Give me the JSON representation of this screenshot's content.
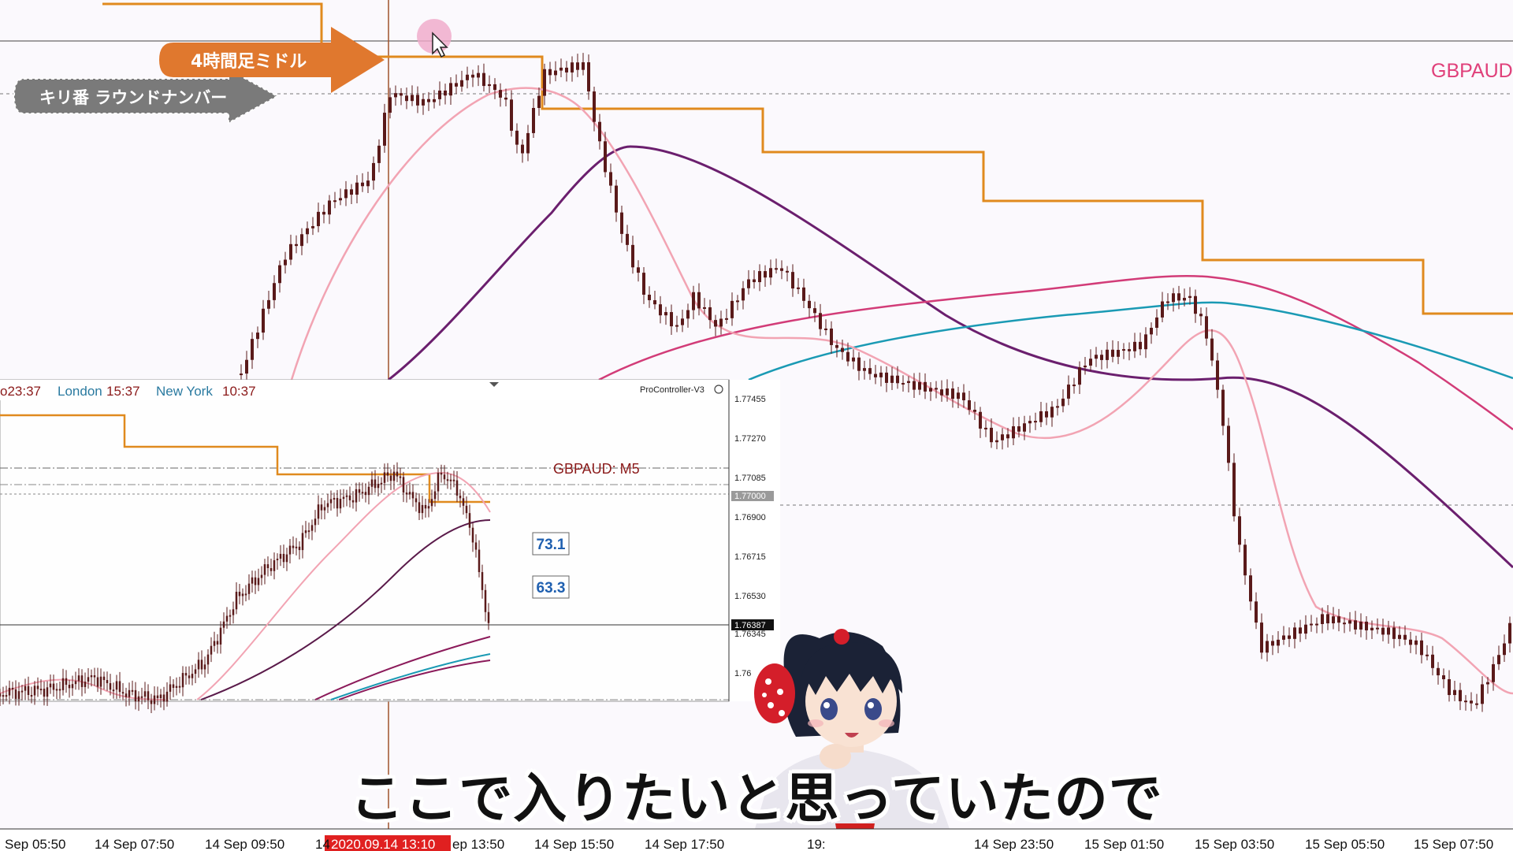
{
  "main_chart": {
    "symbol_label": "GBPAUD",
    "x_ticks": [
      "Sep 05:50",
      "14 Sep 07:50",
      "14 Sep 09:50",
      "14",
      "ep 13:50",
      "14 Sep 15:50",
      "14 Sep 17:50",
      "19:",
      "14 Sep 23:50",
      "15 Sep 01:50",
      "15 Sep 03:50",
      "15 Sep 05:50",
      "15 Sep 07:50"
    ],
    "highlighted_time": "2020.09.14 13:10",
    "colors": {
      "background": "#fbf9fd",
      "candle": "#5a1a1a",
      "orange_step": "#e08a1e",
      "purple_ma": "#6b1f6e",
      "pink_ma": "#f2a4b3",
      "magenta_ma": "#d23c78",
      "teal_ma": "#1a9ab4",
      "vertical_line": "#a0522d",
      "time_highlight": "#e02020"
    }
  },
  "callouts": {
    "orange_arrow": "4時間足ミドル",
    "gray_arrow": "キリ番 ラウンドナンバー"
  },
  "session_clock": {
    "tokyo": "o23:37",
    "london_label": "London",
    "london_time": "15:37",
    "newyork_label": "New York",
    "newyork_time": "10:37"
  },
  "inset_chart": {
    "title": "GBPAUD: M5",
    "indicator": "ProController-V3",
    "price_labels": [
      "1.77455",
      "1.77270",
      "1.77085",
      "1.77000",
      "1.76900",
      "1.76715",
      "1.76530",
      "1.76387",
      "1.76345",
      "1.76"
    ],
    "current_price": "1.76387",
    "boxes": [
      "73.1",
      "63.3"
    ]
  },
  "subtitle": "ここで入りたいと思っていたので"
}
